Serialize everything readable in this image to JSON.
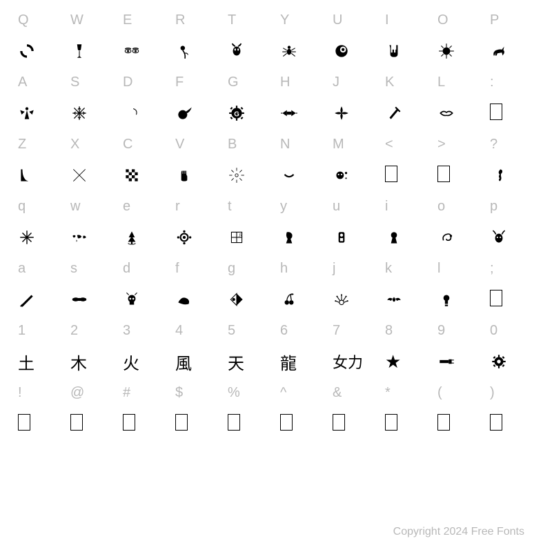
{
  "footer": "Copyright 2024 Free Fonts",
  "colors": {
    "label": "#b8b8b8",
    "glyph": "#000000",
    "background": "#ffffff"
  },
  "label_fontsize": 20,
  "glyph_fontsize": 22,
  "rows": [
    {
      "type": "label",
      "cells": [
        "Q",
        "W",
        "E",
        "R",
        "T",
        "Y",
        "U",
        "I",
        "O",
        "P"
      ]
    },
    {
      "type": "glyph",
      "cells": [
        "cycle",
        "goblet",
        "eyes",
        "rose",
        "devil",
        "spider",
        "eye-ball",
        "horns-hand",
        "compass",
        "gazelle"
      ]
    },
    {
      "type": "label",
      "cells": [
        "A",
        "S",
        "D",
        "F",
        "G",
        "H",
        "J",
        "K",
        "L",
        ":"
      ]
    },
    {
      "type": "glyph",
      "cells": [
        "angel",
        "snowflake",
        "crescent",
        "fire-ball",
        "gear-g",
        "bowtie",
        "shuriken",
        "dagger",
        "lips",
        "empty"
      ]
    },
    {
      "type": "label",
      "cells": [
        "Z",
        "X",
        "C",
        "V",
        "B",
        "N",
        "M",
        "<",
        ">",
        "?"
      ]
    },
    {
      "type": "glyph",
      "cells": [
        "corner",
        "cross",
        "checker",
        "fist",
        "burst",
        "smile",
        "face-dots",
        "empty",
        "empty",
        "seahorse"
      ]
    },
    {
      "type": "label",
      "cells": [
        "q",
        "w",
        "e",
        "r",
        "t",
        "y",
        "u",
        "i",
        "o",
        "p"
      ]
    },
    {
      "type": "glyph",
      "cells": [
        "sparkle",
        "worldmap",
        "tree",
        "sun-ring",
        "grid-art",
        "knight",
        "column",
        "keyhole",
        "swirl",
        "face-fire"
      ]
    },
    {
      "type": "label",
      "cells": [
        "a",
        "s",
        "d",
        "f",
        "g",
        "h",
        "j",
        "k",
        "l",
        ";"
      ]
    },
    {
      "type": "glyph",
      "cells": [
        "knife",
        "tribal",
        "skull",
        "wave",
        "diamond-split",
        "cherries",
        "hand-splay",
        "bat",
        "bulb",
        "empty"
      ]
    },
    {
      "type": "label",
      "cells": [
        "1",
        "2",
        "3",
        "4",
        "5",
        "6",
        "7",
        "8",
        "9",
        "0"
      ]
    },
    {
      "type": "glyph",
      "cells": [
        "kanji-earth",
        "kanji-tree",
        "kanji-fire",
        "kanji-wind",
        "kanji-sky",
        "kanji-dragon",
        "kanji-woman",
        "star",
        "plug",
        "gear"
      ]
    },
    {
      "type": "label",
      "cells": [
        "!",
        "@",
        "#",
        "$",
        "%",
        "^",
        "&",
        "*",
        "(",
        ")"
      ]
    },
    {
      "type": "glyph",
      "cells": [
        "empty",
        "empty",
        "empty",
        "empty",
        "empty",
        "empty",
        "empty",
        "empty",
        "empty",
        "empty"
      ]
    }
  ]
}
